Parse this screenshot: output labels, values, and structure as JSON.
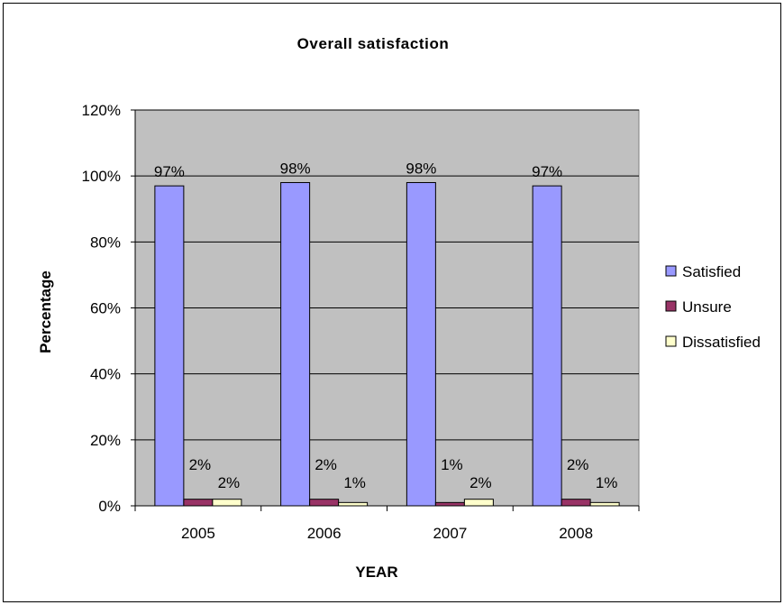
{
  "chart_data": {
    "type": "bar",
    "title": "Overall satisfaction",
    "xlabel": "YEAR",
    "ylabel": "Percentage",
    "categories": [
      "2005",
      "2006",
      "2007",
      "2008"
    ],
    "series": [
      {
        "name": "Satisfied",
        "values": [
          97,
          98,
          98,
          97
        ],
        "labels": [
          "97%",
          "98%",
          "98%",
          "97%"
        ],
        "color": "#9999ff"
      },
      {
        "name": "Unsure",
        "values": [
          2,
          2,
          1,
          2
        ],
        "labels": [
          "2%",
          "2%",
          "1%",
          "2%"
        ],
        "color": "#993366"
      },
      {
        "name": "Dissatisfied",
        "values": [
          2,
          1,
          2,
          1
        ],
        "labels": [
          "2%",
          "1%",
          "2%",
          "1%"
        ],
        "color": "#ffffcc"
      }
    ],
    "ylim": [
      0,
      120
    ],
    "yticks": [
      0,
      20,
      40,
      60,
      80,
      100,
      120
    ],
    "ytick_labels": [
      "0%",
      "20%",
      "40%",
      "60%",
      "80%",
      "100%",
      "120%"
    ],
    "grid": true,
    "plot_background": "#c0c0c0",
    "legend_position": "right"
  }
}
